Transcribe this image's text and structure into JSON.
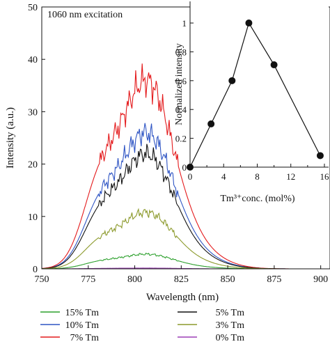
{
  "chart_data": [
    {
      "type": "line",
      "annotation": "1060 nm excitation",
      "xlabel": "Wavelength (nm)",
      "ylabel": "Intensity (a.u.)",
      "xlim": [
        750,
        905
      ],
      "ylim": [
        0,
        50
      ],
      "xticks": [
        750,
        775,
        800,
        825,
        850,
        875,
        900
      ],
      "yticks": [
        0,
        10,
        20,
        30,
        40,
        50
      ],
      "grid": false,
      "legend_position": "bottom",
      "series": [
        {
          "name": "15% Tm",
          "color": "#2ca02c",
          "peak": 2.8
        },
        {
          "name": "10% Tm",
          "color": "#2f55c4",
          "peak": 26
        },
        {
          "name": "7% Tm",
          "color": "#e41a1c",
          "peak": 36
        },
        {
          "name": "5% Tm",
          "color": "#111111",
          "peak": 22
        },
        {
          "name": "3% Tm",
          "color": "#8c9a2c",
          "peak": 10.8
        },
        {
          "name": "0% Tm",
          "color": "#9b3fb5",
          "peak": 0.15
        }
      ]
    },
    {
      "type": "scatter",
      "xlabel": "Tm³⁺conc. (mol%)",
      "ylabel": "Normalized intensity",
      "xlim": [
        0,
        16.5
      ],
      "ylim": [
        0,
        1.15
      ],
      "xticks": [
        0,
        4,
        8,
        12,
        16
      ],
      "xtick_minor": [
        2,
        6,
        10,
        14
      ],
      "yticks": [
        0,
        0.2,
        0.4,
        0.6,
        0.8,
        1
      ],
      "ytick_labels": [
        "0",
        "0.2",
        "0.4",
        "0.6",
        "0.8",
        "1"
      ],
      "x": [
        0,
        2.5,
        5,
        7,
        10,
        15.5
      ],
      "y": [
        0,
        0.3,
        0.6,
        1.0,
        0.71,
        0.08
      ],
      "color": "#111111"
    }
  ]
}
